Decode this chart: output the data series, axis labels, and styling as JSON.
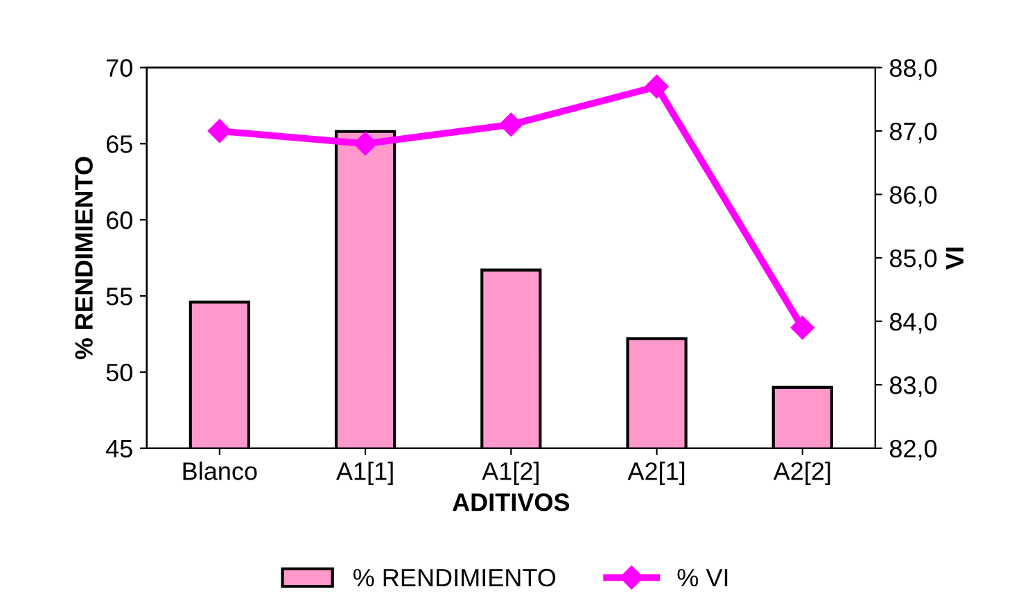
{
  "chart_data": {
    "type": "bar",
    "xlabel": "ADITIVOS",
    "ylabel": "% RENDIMIENTO",
    "y2label": "VI",
    "categories": [
      "Blanco",
      "A1[1]",
      "A1[2]",
      "A2[1]",
      "A2[2]"
    ],
    "series": [
      {
        "name": "% RENDIMIENTO",
        "color": "#ff99cc",
        "values": [
          54.6,
          65.8,
          56.7,
          52.2,
          49.0
        ]
      },
      {
        "name": "% VI",
        "type": "line",
        "axis": "y2",
        "color": "#ff00ff",
        "marker": "diamond",
        "values": [
          87.0,
          86.8,
          87.1,
          87.7,
          83.9
        ]
      }
    ],
    "ylim": [
      45,
      70
    ],
    "yticks": [
      45,
      50,
      55,
      60,
      65,
      70
    ],
    "y2lim": [
      82,
      88
    ],
    "y2ticks": [
      {
        "value": 82,
        "label": "82,0"
      },
      {
        "value": 83,
        "label": "83,0"
      },
      {
        "value": 84,
        "label": "84,0"
      },
      {
        "value": 85,
        "label": "85,0"
      },
      {
        "value": 86,
        "label": "86,0"
      },
      {
        "value": 87,
        "label": "87,0"
      },
      {
        "value": 88,
        "label": "88,0"
      }
    ],
    "legend": "bottom",
    "grid": false
  }
}
